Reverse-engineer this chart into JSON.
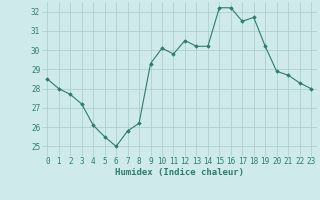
{
  "x": [
    0,
    1,
    2,
    3,
    4,
    5,
    6,
    7,
    8,
    9,
    10,
    11,
    12,
    13,
    14,
    15,
    16,
    17,
    18,
    19,
    20,
    21,
    22,
    23
  ],
  "y": [
    28.5,
    28.0,
    27.7,
    27.2,
    26.1,
    25.5,
    25.0,
    25.8,
    26.2,
    29.3,
    30.1,
    29.8,
    30.5,
    30.2,
    30.2,
    32.2,
    32.2,
    31.5,
    31.7,
    30.2,
    28.9,
    28.7,
    28.3,
    28.0
  ],
  "line_color": "#2e7d6e",
  "marker": "D",
  "marker_size": 1.8,
  "line_width": 0.8,
  "bg_color": "#ceeaea",
  "grid_color": "#aacaca",
  "xlabel": "Humidex (Indice chaleur)",
  "xlabel_fontsize": 6.5,
  "tick_fontsize": 5.5,
  "ylim": [
    24.5,
    32.5
  ],
  "yticks": [
    25,
    26,
    27,
    28,
    29,
    30,
    31,
    32
  ],
  "xlim": [
    -0.5,
    23.5
  ],
  "xticks": [
    0,
    1,
    2,
    3,
    4,
    5,
    6,
    7,
    8,
    9,
    10,
    11,
    12,
    13,
    14,
    15,
    16,
    17,
    18,
    19,
    20,
    21,
    22,
    23
  ]
}
